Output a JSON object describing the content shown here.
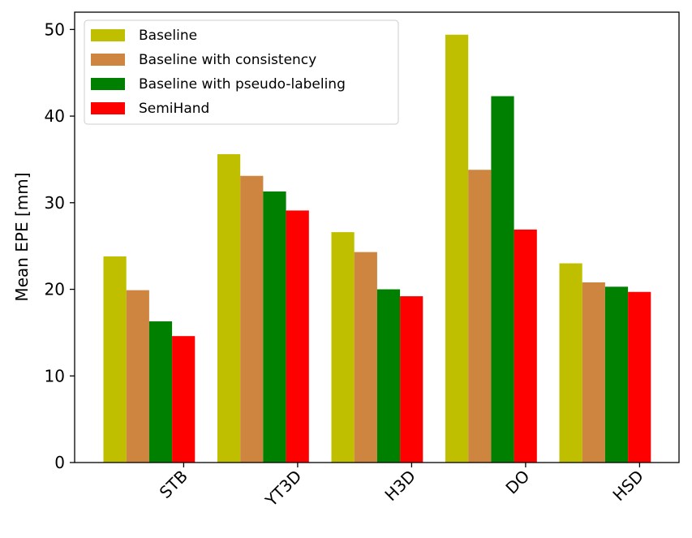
{
  "chart_data": {
    "type": "bar",
    "title": "",
    "xlabel": "",
    "ylabel": "Mean EPE [mm]",
    "categories": [
      "STB",
      "YT3D",
      "H3D",
      "DO",
      "HSD"
    ],
    "series": [
      {
        "name": "Baseline",
        "color": "#bfbf00",
        "values": [
          23.8,
          35.6,
          26.6,
          49.4,
          23.0
        ]
      },
      {
        "name": "Baseline with consistency",
        "color": "#cd853f",
        "values": [
          19.9,
          33.1,
          24.3,
          33.8,
          20.8
        ]
      },
      {
        "name": "Baseline with pseudo-labeling",
        "color": "#008000",
        "values": [
          16.3,
          31.3,
          20.0,
          42.3,
          20.3
        ]
      },
      {
        "name": "SemiHand",
        "color": "#ff0000",
        "values": [
          14.6,
          29.1,
          19.2,
          26.9,
          19.7
        ]
      }
    ],
    "ylim": [
      0,
      52
    ],
    "yticks": [
      0,
      10,
      20,
      30,
      40,
      50
    ],
    "legend_position": "upper-left",
    "grid": false
  }
}
